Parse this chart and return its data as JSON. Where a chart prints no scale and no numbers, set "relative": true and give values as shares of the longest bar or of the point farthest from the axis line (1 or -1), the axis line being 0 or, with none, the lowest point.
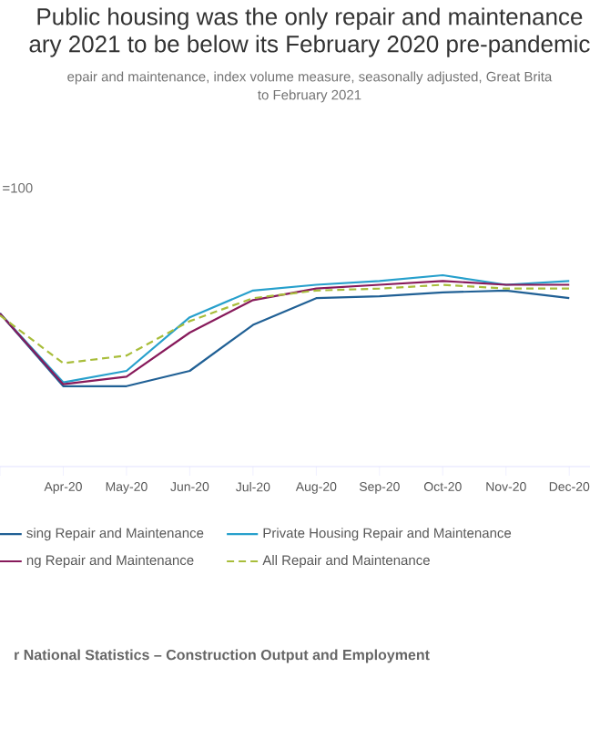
{
  "chart_data": {
    "type": "line",
    "title": "Public housing was the only repair and maintenance\nary 2021 to be below its February 2020 pre-pandemic",
    "subtitle": "epair and maintenance, index volume measure, seasonally adjusted, Great Brita\nto February 2021",
    "relative": true,
    "categories": [
      null,
      "Apr-20",
      "May-20",
      "Jun-20",
      "Jul-20",
      "Aug-20",
      "Sep-20",
      "Oct-20",
      "Nov-20",
      "Dec-20"
    ],
    "series": [
      {
        "name": "sing Repair and Maintenance",
        "color": "#206095",
        "values": [
          0.8,
          0.42,
          0.42,
          0.5,
          0.74,
          0.88,
          0.89,
          0.91,
          0.92,
          0.88
        ]
      },
      {
        "name": "Private Housing Repair and Maintenance",
        "color": "#27a0cc",
        "values": [
          0.8,
          0.44,
          0.5,
          0.78,
          0.92,
          0.95,
          0.97,
          1.0,
          0.95,
          0.97
        ]
      },
      {
        "name": "ng Repair and Maintenance",
        "color": "#871a5b",
        "values": [
          0.8,
          0.43,
          0.47,
          0.7,
          0.87,
          0.93,
          0.95,
          0.97,
          0.95,
          0.95
        ]
      },
      {
        "name": "All Repair and Maintenance",
        "color": "#a8bd3a",
        "line_style": "dashed",
        "values": [
          0.79,
          0.54,
          0.58,
          0.76,
          0.88,
          0.92,
          0.93,
          0.95,
          0.93,
          0.93
        ]
      }
    ],
    "legend": "bottom",
    "annotations": [
      "=100",
      "r National Statistics – Construction Output and Employment"
    ]
  }
}
